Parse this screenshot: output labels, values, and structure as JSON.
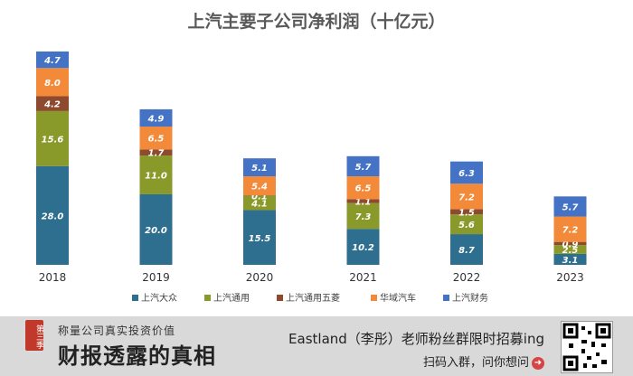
{
  "chart_data": {
    "type": "bar",
    "stacked": true,
    "title": "上汽主要子公司净利润（十亿元）",
    "categories": [
      "2018",
      "2019",
      "2020",
      "2021",
      "2022",
      "2023"
    ],
    "series": [
      {
        "name": "上汽大众",
        "color": "#2e6e8e",
        "values": [
          28.0,
          20.0,
          15.5,
          10.2,
          8.7,
          3.1
        ]
      },
      {
        "name": "上汽通用",
        "color": "#8a9a2a",
        "values": [
          15.6,
          11.0,
          4.1,
          7.3,
          5.6,
          2.5
        ]
      },
      {
        "name": "上汽通用五菱",
        "color": "#8e4a2e",
        "values": [
          4.2,
          1.7,
          0.1,
          1.1,
          1.5,
          0.9
        ]
      },
      {
        "name": "华域汽车",
        "color": "#f28a3a",
        "values": [
          8.0,
          6.5,
          5.4,
          6.5,
          7.2,
          7.2
        ]
      },
      {
        "name": "上汽财务",
        "color": "#4472c4",
        "values": [
          4.7,
          4.9,
          5.1,
          5.7,
          6.3,
          5.7
        ]
      }
    ],
    "ylim": [
      0,
      61
    ],
    "legend": "bottom",
    "grid": false
  },
  "banner": {
    "badge": "第三季",
    "subtitle": "称量公司真实投资价值",
    "main_title": "财报透露的真相",
    "promo_line1": "Eastland（李彤）老师粉丝群限时招募ing",
    "promo_line2": "扫码入群，问你想问",
    "arrow_icon": "arrow-right-circle-icon"
  }
}
